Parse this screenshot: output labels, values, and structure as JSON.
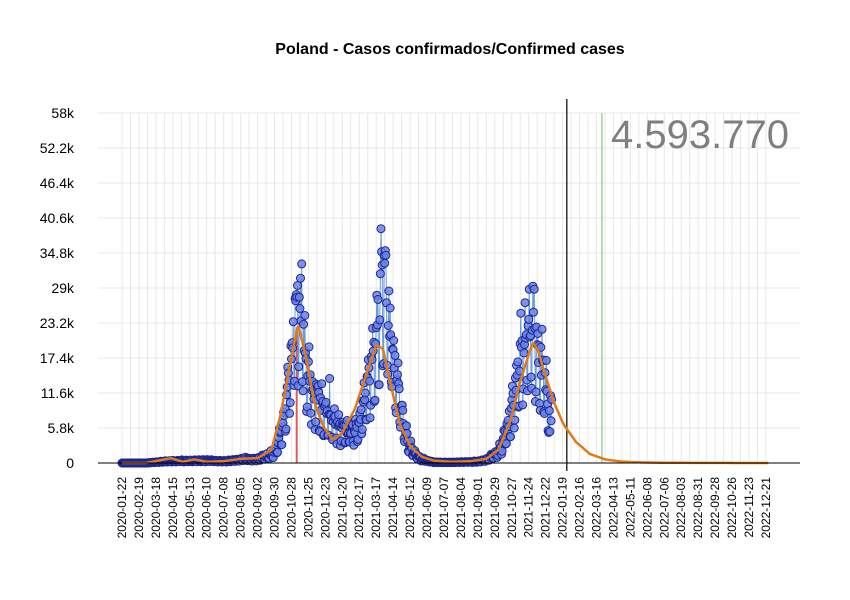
{
  "chart_data": {
    "type": "line",
    "title": "Poland - Casos confirmados/Confirmed cases",
    "total_cases_label": "4.593.770",
    "ylim": [
      0,
      58000
    ],
    "y_ticks": [
      0,
      5800,
      11600,
      17400,
      23200,
      29000,
      34800,
      40600,
      46400,
      52200,
      58000
    ],
    "y_tick_labels": [
      "0",
      "5.8k",
      "11.6k",
      "17.4k",
      "23.2k",
      "29k",
      "34.8k",
      "40.6k",
      "46.4k",
      "52.2k",
      "58k"
    ],
    "x_range": [
      "2020-01-22",
      "2022-12-31"
    ],
    "x_tick_labels": [
      "2020-01-22",
      "2020-02-19",
      "2020-03-18",
      "2020-04-15",
      "2020-05-13",
      "2020-06-10",
      "2020-07-08",
      "2020-08-05",
      "2020-09-02",
      "2020-09-30",
      "2020-10-28",
      "2020-11-25",
      "2020-12-23",
      "2021-01-20",
      "2021-02-17",
      "2021-03-17",
      "2021-04-14",
      "2021-05-12",
      "2021-06-09",
      "2021-07-07",
      "2021-08-04",
      "2021-09-01",
      "2021-09-29",
      "2021-10-27",
      "2021-11-24",
      "2021-12-22",
      "2022-01-19",
      "2022-02-16",
      "2022-03-16",
      "2022-04-13",
      "2022-05-11",
      "2022-06-08",
      "2022-07-06",
      "2022-08-03",
      "2022-08-31",
      "2022-09-28",
      "2022-10-26",
      "2022-11-23",
      "2022-12-21"
    ],
    "grid": true,
    "markers": {
      "red_band": [
        "2020-11-04",
        "2020-11-07"
      ],
      "today_line": "2022-01-26",
      "green_line": "2022-03-25"
    },
    "observed_keypoints": [
      [
        "2020-01-22",
        0
      ],
      [
        "2020-03-01",
        0
      ],
      [
        "2020-04-10",
        350
      ],
      [
        "2020-05-15",
        400
      ],
      [
        "2020-06-10",
        450
      ],
      [
        "2020-07-10",
        300
      ],
      [
        "2020-08-10",
        700
      ],
      [
        "2020-09-01",
        700
      ],
      [
        "2020-09-25",
        1500
      ],
      [
        "2020-10-05",
        3000
      ],
      [
        "2020-10-15",
        7000
      ],
      [
        "2020-10-22",
        12000
      ],
      [
        "2020-10-28",
        18000
      ],
      [
        "2020-11-03",
        24000
      ],
      [
        "2020-11-07",
        27000
      ],
      [
        "2020-11-12",
        24000
      ],
      [
        "2020-11-18",
        20000
      ],
      [
        "2020-11-25",
        15000
      ],
      [
        "2020-12-03",
        12000
      ],
      [
        "2020-12-10",
        11500
      ],
      [
        "2020-12-17",
        10000
      ],
      [
        "2020-12-25",
        8000
      ],
      [
        "2021-01-05",
        7500
      ],
      [
        "2021-01-15",
        6000
      ],
      [
        "2021-01-28",
        5500
      ],
      [
        "2021-02-10",
        5800
      ],
      [
        "2021-02-20",
        8500
      ],
      [
        "2021-03-01",
        12000
      ],
      [
        "2021-03-10",
        17500
      ],
      [
        "2021-03-20",
        26000
      ],
      [
        "2021-03-28",
        31000
      ],
      [
        "2021-04-02",
        30000
      ],
      [
        "2021-04-10",
        23000
      ],
      [
        "2021-04-18",
        15000
      ],
      [
        "2021-04-28",
        9000
      ],
      [
        "2021-05-05",
        5000
      ],
      [
        "2021-05-15",
        2200
      ],
      [
        "2021-05-30",
        700
      ],
      [
        "2021-06-20",
        150
      ],
      [
        "2021-07-15",
        100
      ],
      [
        "2021-08-10",
        180
      ],
      [
        "2021-08-30",
        250
      ],
      [
        "2021-09-15",
        600
      ],
      [
        "2021-09-30",
        1500
      ],
      [
        "2021-10-10",
        3000
      ],
      [
        "2021-10-20",
        6000
      ],
      [
        "2021-10-28",
        10000
      ],
      [
        "2021-11-05",
        15000
      ],
      [
        "2021-11-15",
        20000
      ],
      [
        "2021-11-25",
        23000
      ],
      [
        "2021-12-01",
        24000
      ],
      [
        "2021-12-08",
        20000
      ],
      [
        "2021-12-15",
        17000
      ],
      [
        "2021-12-22",
        13000
      ],
      [
        "2021-12-28",
        10000
      ],
      [
        "2022-01-01",
        11000
      ]
    ],
    "observed_outliers": [
      [
        "2020-11-14",
        33000
      ],
      [
        "2020-11-06",
        27500
      ],
      [
        "2020-12-02",
        13500
      ],
      [
        "2020-12-30",
        14000
      ],
      [
        "2021-03-26",
        35000
      ],
      [
        "2021-04-01",
        35200
      ],
      [
        "2021-04-07",
        28500
      ],
      [
        "2021-04-08",
        21000
      ],
      [
        "2021-11-25",
        28800
      ],
      [
        "2021-12-01",
        29300
      ],
      [
        "2021-12-03",
        28800
      ],
      [
        "2021-11-30",
        22000
      ],
      [
        "2021-12-29",
        5200
      ],
      [
        "2021-12-31",
        7000
      ],
      [
        "2021-12-23",
        17000
      ],
      [
        "2022-01-02",
        16500
      ]
    ],
    "fitted_keypoints": [
      [
        "2020-01-22",
        0
      ],
      [
        "2020-03-01",
        0
      ],
      [
        "2020-04-12",
        800
      ],
      [
        "2020-05-01",
        200
      ],
      [
        "2020-05-20",
        600
      ],
      [
        "2020-06-10",
        200
      ],
      [
        "2020-07-08",
        300
      ],
      [
        "2020-08-05",
        700
      ],
      [
        "2020-09-02",
        800
      ],
      [
        "2020-09-25",
        2200
      ],
      [
        "2020-10-10",
        8000
      ],
      [
        "2020-10-25",
        16000
      ],
      [
        "2020-11-08",
        23000
      ],
      [
        "2020-11-20",
        18000
      ],
      [
        "2020-12-05",
        10000
      ],
      [
        "2020-12-20",
        6000
      ],
      [
        "2021-01-05",
        3800
      ],
      [
        "2021-01-20",
        5000
      ],
      [
        "2021-02-10",
        9000
      ],
      [
        "2021-03-05",
        16000
      ],
      [
        "2021-03-17",
        19500
      ],
      [
        "2021-03-28",
        19000
      ],
      [
        "2021-04-10",
        13000
      ],
      [
        "2021-04-25",
        6500
      ],
      [
        "2021-05-12",
        2800
      ],
      [
        "2021-06-01",
        1000
      ],
      [
        "2021-06-20",
        400
      ],
      [
        "2021-07-20",
        200
      ],
      [
        "2021-08-20",
        300
      ],
      [
        "2021-09-15",
        700
      ],
      [
        "2021-10-05",
        2200
      ],
      [
        "2021-10-25",
        7000
      ],
      [
        "2021-11-10",
        13500
      ],
      [
        "2021-11-24",
        18000
      ],
      [
        "2021-12-01",
        20000
      ],
      [
        "2021-12-10",
        18500
      ],
      [
        "2021-12-20",
        15000
      ],
      [
        "2022-01-05",
        10000
      ],
      [
        "2022-01-20",
        6500
      ],
      [
        "2022-02-10",
        3500
      ],
      [
        "2022-03-05",
        1500
      ],
      [
        "2022-03-30",
        600
      ],
      [
        "2022-04-25",
        250
      ],
      [
        "2022-05-20",
        120
      ],
      [
        "2022-07-01",
        50
      ],
      [
        "2022-09-01",
        15
      ],
      [
        "2022-12-25",
        0
      ]
    ],
    "colors": {
      "point_fill": "#6a82e8",
      "point_stroke": "#1c2790",
      "observed_line": "#5b8fd9",
      "fitted_line": "#e07b16",
      "red_band": "#d04040",
      "today_line": "#000000",
      "green_line": "#9ccf9c",
      "big_number": "#7f7f7f",
      "grid": "#e8e8e8"
    }
  }
}
